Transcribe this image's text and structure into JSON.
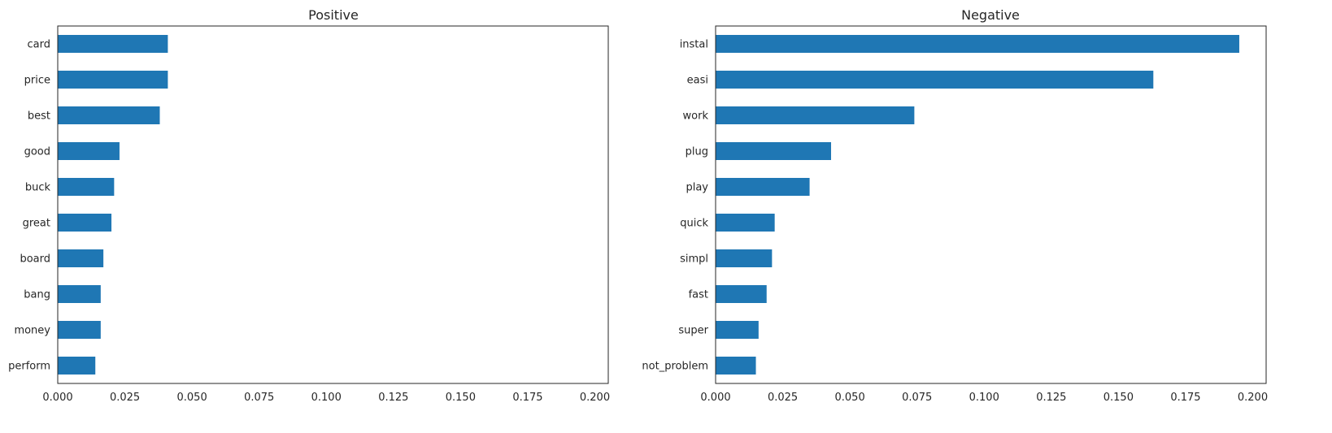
{
  "chart_data": [
    {
      "type": "bar",
      "orientation": "horizontal",
      "title": "Positive",
      "categories": [
        "card",
        "price",
        "best",
        "good",
        "buck",
        "great",
        "board",
        "bang",
        "money",
        "perform"
      ],
      "values": [
        0.041,
        0.041,
        0.038,
        0.023,
        0.021,
        0.02,
        0.017,
        0.016,
        0.016,
        0.014
      ],
      "xlim": [
        0,
        0.205
      ],
      "xticks": [
        "0.000",
        "0.025",
        "0.050",
        "0.075",
        "0.100",
        "0.125",
        "0.150",
        "0.175",
        "0.200"
      ],
      "xlabel": "",
      "ylabel": "",
      "grid": false,
      "bar_color": "#1f77b4"
    },
    {
      "type": "bar",
      "orientation": "horizontal",
      "title": "Negative",
      "categories": [
        "instal",
        "easi",
        "work",
        "plug",
        "play",
        "quick",
        "simpl",
        "fast",
        "super",
        "not_problem"
      ],
      "values": [
        0.195,
        0.163,
        0.074,
        0.043,
        0.035,
        0.022,
        0.021,
        0.019,
        0.016,
        0.015
      ],
      "xlim": [
        0,
        0.205
      ],
      "xticks": [
        "0.000",
        "0.025",
        "0.050",
        "0.075",
        "0.100",
        "0.125",
        "0.150",
        "0.175",
        "0.200"
      ],
      "xlabel": "",
      "ylabel": "",
      "grid": false,
      "bar_color": "#1f77b4"
    }
  ]
}
